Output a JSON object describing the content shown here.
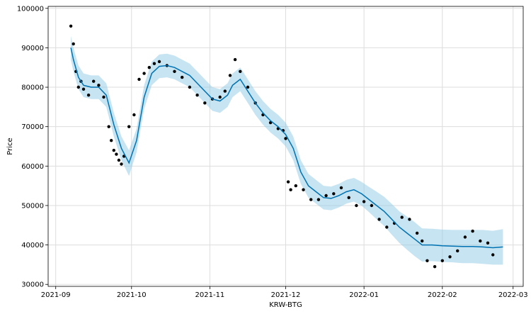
{
  "chart_data": {
    "type": "scatter",
    "xlabel": "KRW-BTG",
    "ylabel": "Price",
    "x_axis_type": "date",
    "xlim": [
      "2021-08-29",
      "2022-03-05"
    ],
    "ylim": [
      29500,
      100500
    ],
    "grid": true,
    "x_ticks": [
      "2021-09-01",
      "2021-10-01",
      "2021-11-01",
      "2021-12-01",
      "2022-01-01",
      "2022-02-01",
      "2022-03-01"
    ],
    "x_tick_labels": [
      "2021-09",
      "2021-10",
      "2021-11",
      "2021-12",
      "2022-01",
      "2022-02",
      "2022-03"
    ],
    "y_ticks": [
      30000,
      40000,
      50000,
      60000,
      70000,
      80000,
      90000,
      100000
    ],
    "y_tick_labels": [
      "30000",
      "40000",
      "50000",
      "60000",
      "70000",
      "80000",
      "90000",
      "100000"
    ],
    "colors": {
      "actual": "#000000",
      "forecast": "#0072B2",
      "uncertainty": "#8ecae6",
      "grid": "#dddddd"
    },
    "series": [
      {
        "kind": "observed",
        "x": [
          "2021-09-07",
          "2021-09-08",
          "2021-09-09",
          "2021-09-10",
          "2021-09-11",
          "2021-09-12",
          "2021-09-14",
          "2021-09-16",
          "2021-09-18",
          "2021-09-20",
          "2021-09-22",
          "2021-09-23",
          "2021-09-24",
          "2021-09-25",
          "2021-09-26",
          "2021-09-27",
          "2021-09-28",
          "2021-09-30",
          "2021-10-02",
          "2021-10-04",
          "2021-10-06",
          "2021-10-08",
          "2021-10-10",
          "2021-10-12",
          "2021-10-15",
          "2021-10-18",
          "2021-10-21",
          "2021-10-24",
          "2021-10-27",
          "2021-10-30",
          "2021-11-02",
          "2021-11-05",
          "2021-11-07",
          "2021-11-09",
          "2021-11-11",
          "2021-11-13",
          "2021-11-16",
          "2021-11-19",
          "2021-11-22",
          "2021-11-25",
          "2021-11-28",
          "2021-11-30",
          "2021-12-01",
          "2021-12-02",
          "2021-12-03",
          "2021-12-05",
          "2021-12-08",
          "2021-12-11",
          "2021-12-14",
          "2021-12-17",
          "2021-12-20",
          "2021-12-23",
          "2021-12-26",
          "2021-12-29",
          "2022-01-01",
          "2022-01-04",
          "2022-01-07",
          "2022-01-10",
          "2022-01-13",
          "2022-01-16",
          "2022-01-19",
          "2022-01-22",
          "2022-01-24",
          "2022-01-26",
          "2022-01-29",
          "2022-02-01",
          "2022-02-04",
          "2022-02-07",
          "2022-02-10",
          "2022-02-13",
          "2022-02-16",
          "2022-02-19",
          "2022-02-21"
        ],
        "y": [
          95500,
          91000,
          84000,
          80000,
          81500,
          79500,
          78000,
          81500,
          80500,
          77500,
          70000,
          66500,
          64000,
          63000,
          61500,
          60500,
          62500,
          70000,
          73000,
          82000,
          83500,
          85000,
          86000,
          86500,
          85500,
          84000,
          82500,
          80000,
          78000,
          76000,
          77000,
          77500,
          79000,
          83000,
          87000,
          84000,
          80000,
          76000,
          73000,
          71000,
          69500,
          69000,
          67000,
          56000,
          54000,
          55000,
          54000,
          51500,
          51500,
          52500,
          53000,
          54500,
          52000,
          50000,
          51000,
          50000,
          46500,
          44500,
          45500,
          47000,
          46500,
          43000,
          41000,
          36000,
          34500,
          36000,
          37000,
          38500,
          42000,
          43500,
          41000,
          40500,
          37500
        ]
      },
      {
        "kind": "forecast",
        "x": [
          "2021-09-07",
          "2021-09-08",
          "2021-09-10",
          "2021-09-12",
          "2021-09-15",
          "2021-09-18",
          "2021-09-21",
          "2021-09-24",
          "2021-09-27",
          "2021-09-30",
          "2021-10-03",
          "2021-10-06",
          "2021-10-09",
          "2021-10-12",
          "2021-10-15",
          "2021-10-18",
          "2021-10-21",
          "2021-10-24",
          "2021-10-27",
          "2021-10-30",
          "2021-11-02",
          "2021-11-05",
          "2021-11-08",
          "2021-11-10",
          "2021-11-13",
          "2021-11-16",
          "2021-11-19",
          "2021-11-22",
          "2021-11-25",
          "2021-11-28",
          "2021-12-01",
          "2021-12-04",
          "2021-12-07",
          "2021-12-10",
          "2021-12-13",
          "2021-12-16",
          "2021-12-19",
          "2021-12-22",
          "2021-12-25",
          "2021-12-28",
          "2021-12-31",
          "2022-01-03",
          "2022-01-06",
          "2022-01-09",
          "2022-01-12",
          "2022-01-15",
          "2022-01-18",
          "2022-01-21",
          "2022-01-24",
          "2022-01-28",
          "2022-02-01",
          "2022-02-05",
          "2022-02-09",
          "2022-02-13",
          "2022-02-17",
          "2022-02-21",
          "2022-02-25"
        ],
        "y": [
          90000,
          87000,
          82500,
          80500,
          80000,
          80000,
          78000,
          70500,
          64500,
          60800,
          66500,
          77500,
          83500,
          85300,
          85500,
          85000,
          84000,
          83000,
          81000,
          79000,
          77000,
          76500,
          78000,
          80500,
          82000,
          79000,
          76000,
          73500,
          71500,
          70000,
          68000,
          64500,
          58500,
          55000,
          53500,
          52000,
          51800,
          52500,
          53500,
          54000,
          53000,
          51500,
          50000,
          48500,
          46500,
          44500,
          43000,
          41500,
          40000,
          40000,
          39800,
          39700,
          39600,
          39600,
          39500,
          39300,
          39500
        ]
      }
    ],
    "uncertainty_band": {
      "x": [
        "2021-09-07",
        "2021-09-08",
        "2021-09-10",
        "2021-09-12",
        "2021-09-15",
        "2021-09-18",
        "2021-09-21",
        "2021-09-24",
        "2021-09-27",
        "2021-09-30",
        "2021-10-03",
        "2021-10-06",
        "2021-10-09",
        "2021-10-12",
        "2021-10-15",
        "2021-10-18",
        "2021-10-21",
        "2021-10-24",
        "2021-10-27",
        "2021-10-30",
        "2021-11-02",
        "2021-11-05",
        "2021-11-08",
        "2021-11-10",
        "2021-11-13",
        "2021-11-16",
        "2021-11-19",
        "2021-11-22",
        "2021-11-25",
        "2021-11-28",
        "2021-12-01",
        "2021-12-04",
        "2021-12-07",
        "2021-12-10",
        "2021-12-13",
        "2021-12-16",
        "2021-12-19",
        "2021-12-22",
        "2021-12-25",
        "2021-12-28",
        "2021-12-31",
        "2022-01-03",
        "2022-01-06",
        "2022-01-09",
        "2022-01-12",
        "2022-01-15",
        "2022-01-18",
        "2022-01-21",
        "2022-01-24",
        "2022-01-28",
        "2022-02-01",
        "2022-02-05",
        "2022-02-09",
        "2022-02-13",
        "2022-02-17",
        "2022-02-21",
        "2022-02-25"
      ],
      "lower": [
        87000,
        84000,
        79500,
        77500,
        77000,
        77000,
        75000,
        67500,
        61500,
        57500,
        63500,
        74500,
        80500,
        82300,
        82500,
        82000,
        81000,
        80000,
        78000,
        76000,
        74000,
        73500,
        75000,
        77500,
        79000,
        76000,
        73000,
        70500,
        68500,
        67000,
        65000,
        61500,
        55500,
        52000,
        50500,
        49000,
        48800,
        49500,
        50500,
        51000,
        50000,
        48300,
        46500,
        44800,
        42600,
        40500,
        38800,
        37200,
        35800,
        35900,
        35700,
        35600,
        35400,
        35400,
        35200,
        35000,
        35000
      ],
      "upper": [
        93000,
        90000,
        85500,
        83500,
        83000,
        83000,
        81000,
        73500,
        67500,
        64000,
        69500,
        80500,
        86500,
        88300,
        88500,
        88000,
        87000,
        86000,
        84000,
        82000,
        80000,
        79500,
        81000,
        83500,
        85000,
        82000,
        79000,
        76500,
        74500,
        73000,
        71000,
        67500,
        61500,
        58000,
        56500,
        55000,
        54800,
        55500,
        56500,
        57000,
        56000,
        54700,
        53500,
        52200,
        50400,
        48500,
        47200,
        45800,
        44200,
        44100,
        43900,
        43800,
        43800,
        43800,
        43800,
        43600,
        44000
      ]
    }
  }
}
